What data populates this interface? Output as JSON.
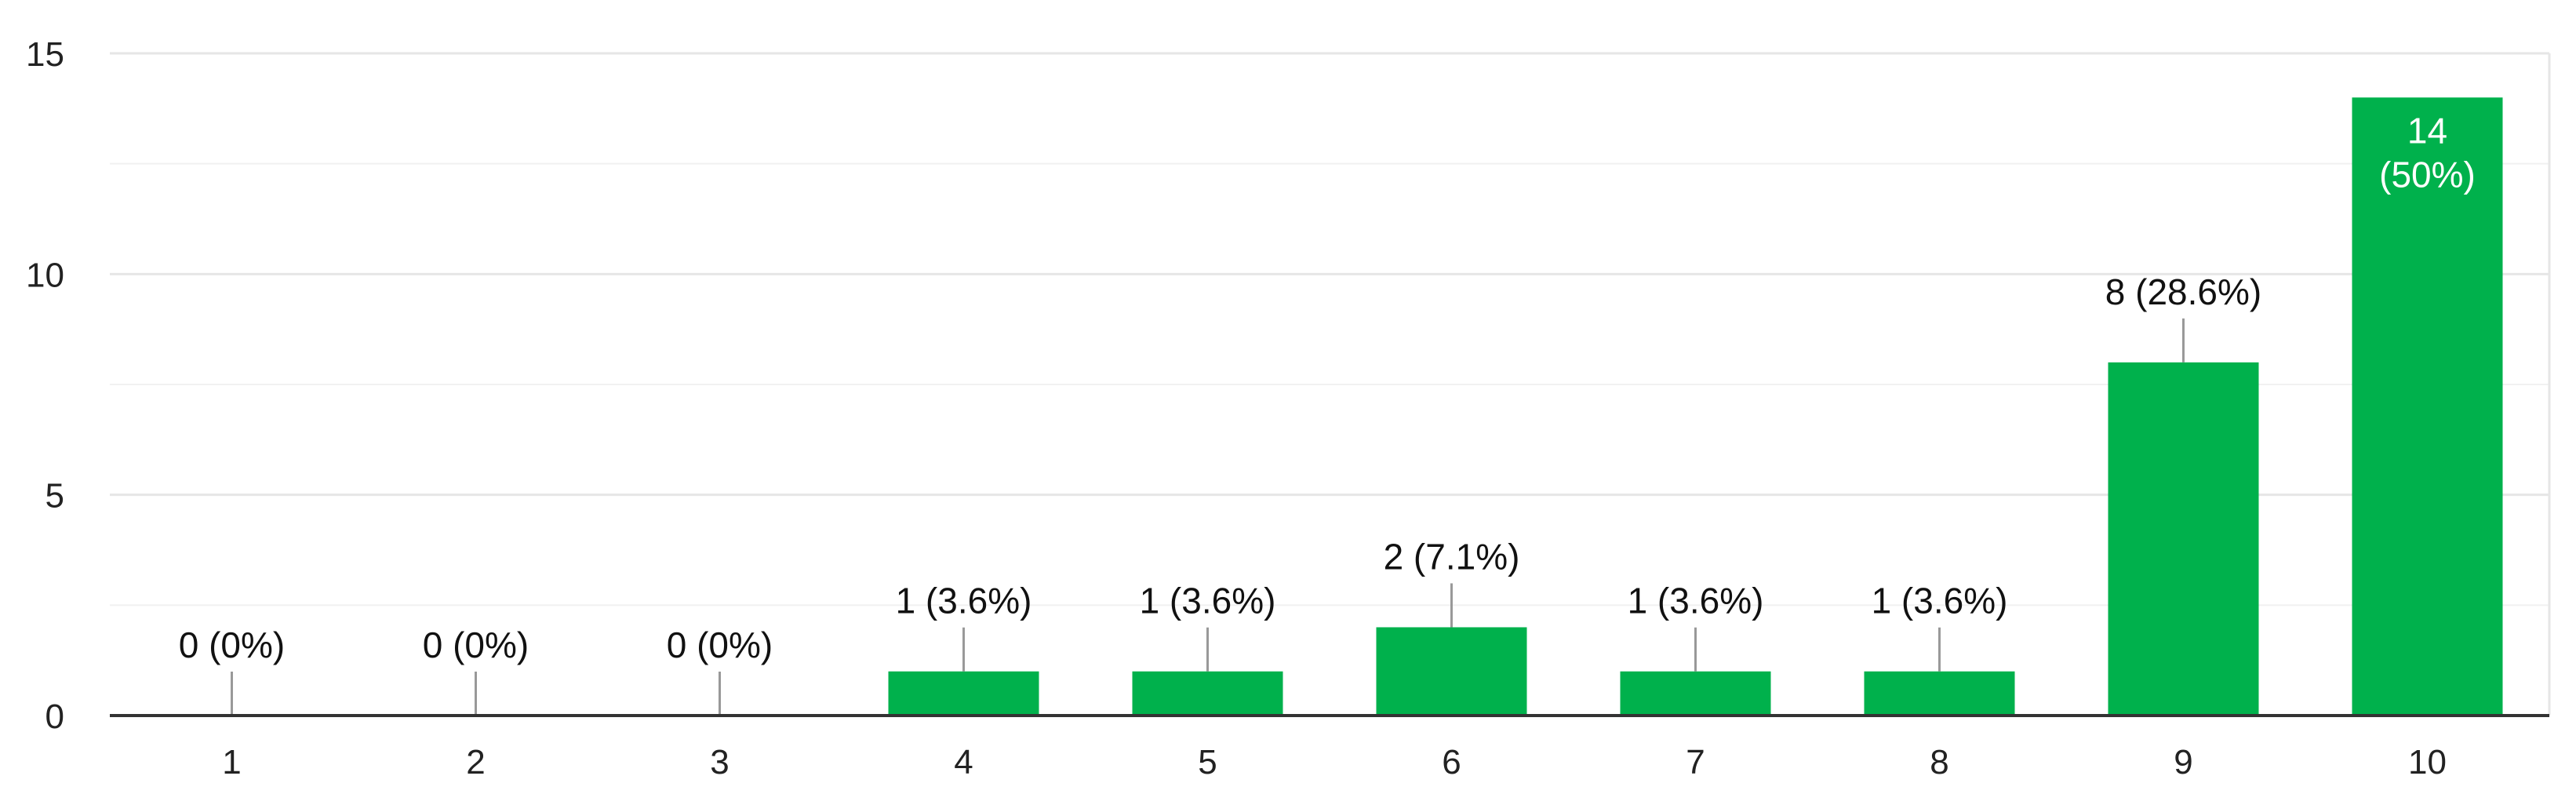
{
  "chart_data": {
    "type": "bar",
    "categories": [
      "1",
      "2",
      "3",
      "4",
      "5",
      "6",
      "7",
      "8",
      "9",
      "10"
    ],
    "values": [
      0,
      0,
      0,
      1,
      1,
      2,
      1,
      1,
      8,
      14
    ],
    "data_labels": [
      "0 (0%)",
      "0 (0%)",
      "0 (0%)",
      "1 (3.6%)",
      "1 (3.6%)",
      "2 (7.1%)",
      "1 (3.6%)",
      "1 (3.6%)",
      "8 (28.6%)",
      "14\n(50%)"
    ],
    "y_ticks": [
      0,
      5,
      10,
      15
    ],
    "ylim": [
      0,
      15
    ],
    "grid": true,
    "legend": "none",
    "bar_color": "#00b14c",
    "axis_color": "#333333",
    "grid_color": "#e6e6e6",
    "leader_color": "#999999"
  }
}
